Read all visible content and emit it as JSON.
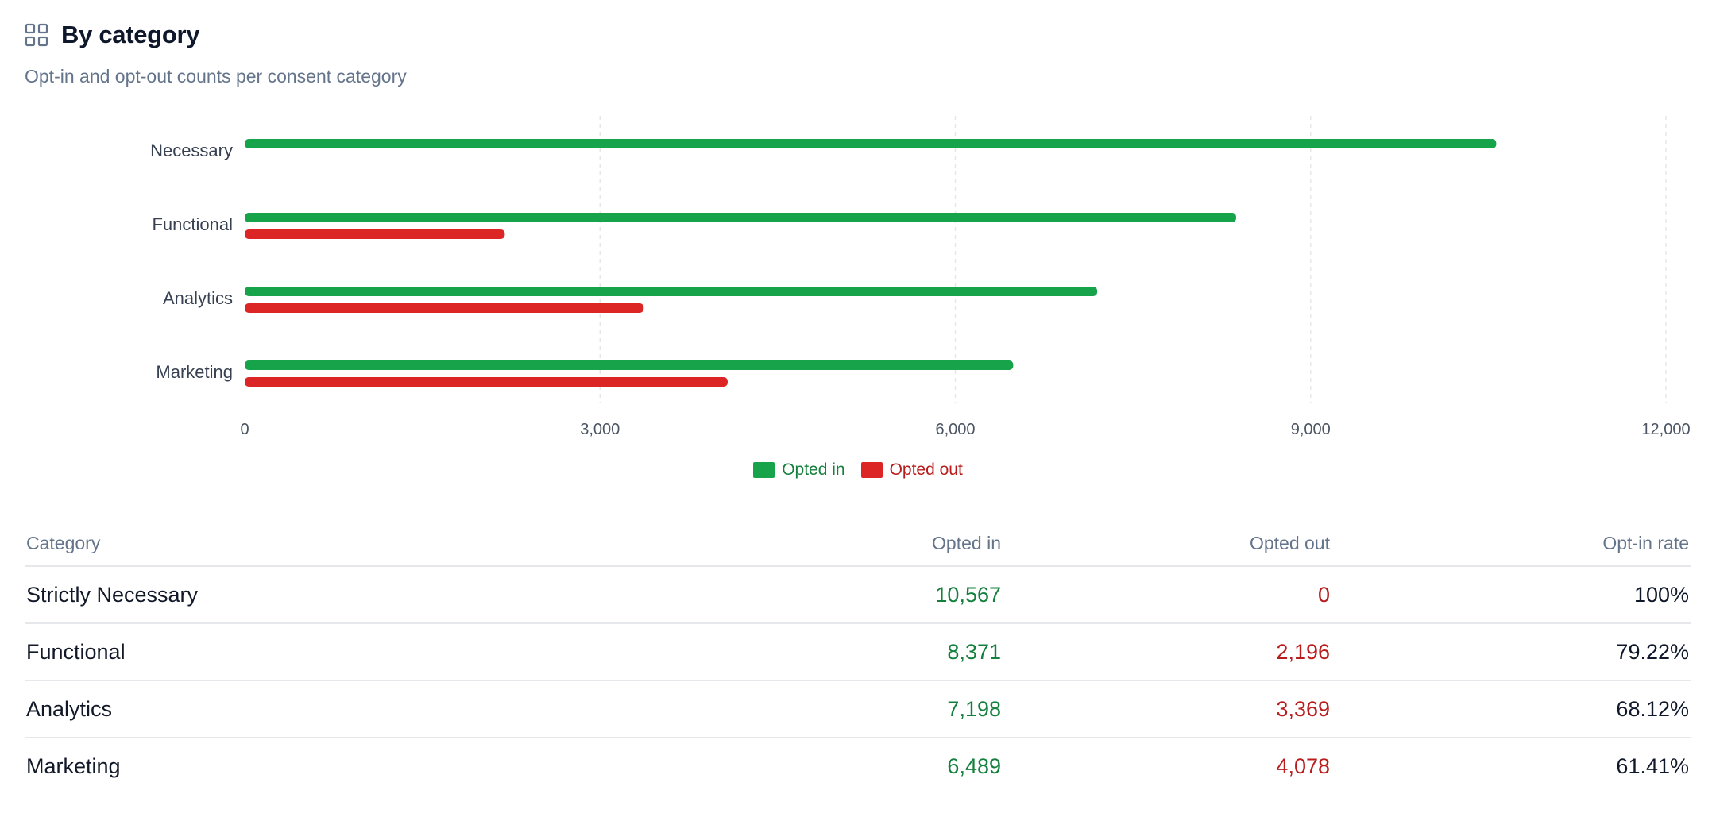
{
  "header": {
    "title": "By category",
    "subtitle": "Opt-in and opt-out counts per consent category",
    "icon": "grid-icon"
  },
  "colors": {
    "opted_in": "#16a34a",
    "opted_out": "#dc2626",
    "opted_in_text": "#15803d",
    "opted_out_text": "#b91c1c"
  },
  "chart_data": {
    "type": "bar",
    "orientation": "horizontal",
    "categories": [
      "Necessary",
      "Functional",
      "Analytics",
      "Marketing"
    ],
    "series": [
      {
        "name": "Opted in",
        "values": [
          10567,
          8371,
          7198,
          6489
        ]
      },
      {
        "name": "Opted out",
        "values": [
          0,
          2196,
          3369,
          4078
        ]
      }
    ],
    "xlim": [
      0,
      12000
    ],
    "xticks": [
      0,
      3000,
      6000,
      9000,
      12000
    ],
    "xtick_labels": [
      "0",
      "3,000",
      "6,000",
      "9,000",
      "12,000"
    ],
    "grid": true,
    "legend": "bottom-center"
  },
  "table": {
    "headers": [
      "Category",
      "Opted in",
      "Opted out",
      "Opt-in rate"
    ],
    "rows": [
      {
        "category": "Strictly Necessary",
        "opted_in": "10,567",
        "opted_out": "0",
        "rate": "100%"
      },
      {
        "category": "Functional",
        "opted_in": "8,371",
        "opted_out": "2,196",
        "rate": "79.22%"
      },
      {
        "category": "Analytics",
        "opted_in": "7,198",
        "opted_out": "3,369",
        "rate": "68.12%"
      },
      {
        "category": "Marketing",
        "opted_in": "6,489",
        "opted_out": "4,078",
        "rate": "61.41%"
      }
    ]
  }
}
